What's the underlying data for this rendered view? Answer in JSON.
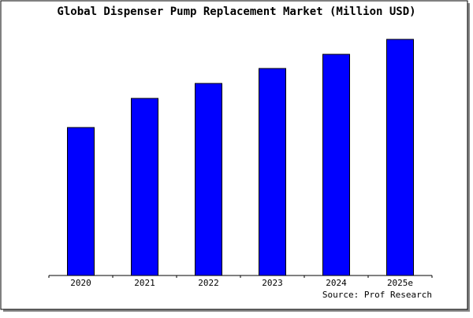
{
  "chart_data": {
    "type": "bar",
    "title": "Global Dispenser Pump Replacement Market (Million USD)",
    "categories": [
      "2020",
      "2021",
      "2022",
      "2023",
      "2024",
      "2025e"
    ],
    "values": [
      188,
      225,
      244,
      263,
      281,
      300
    ],
    "color": "#0000ff",
    "ylim": [
      0,
      300
    ],
    "source": "Source: Prof Research"
  }
}
